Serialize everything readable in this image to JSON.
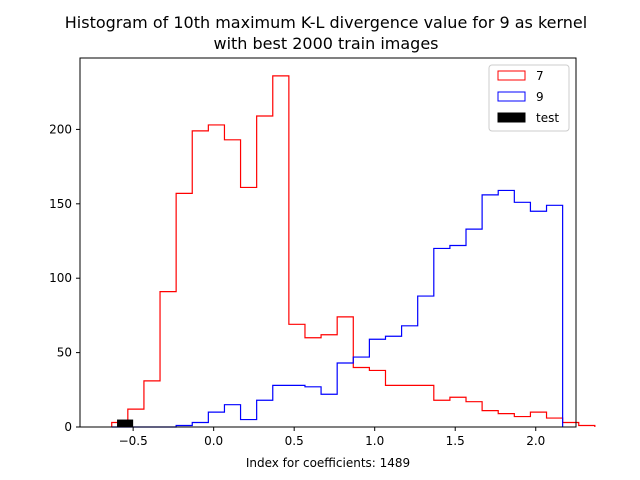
{
  "chart_data": {
    "type": "histogram",
    "title_line1": "Histogram of 10th maximum K-L divergence value for 9 as kernel",
    "title_line2": "with best 2000 train images",
    "xlabel": "Index for coefficients: 1489",
    "ylabel": "",
    "xlim": [
      -0.83,
      2.25
    ],
    "ylim": [
      0,
      248
    ],
    "xticks": [
      -0.5,
      0.0,
      0.5,
      1.0,
      1.5,
      2.0
    ],
    "xtick_labels": [
      "−0.5",
      "0.0",
      "0.5",
      "1.0",
      "1.5",
      "2.0"
    ],
    "yticks": [
      0,
      50,
      100,
      150,
      200
    ],
    "ytick_labels": [
      "0",
      "50",
      "100",
      "150",
      "200"
    ],
    "legend_position": "top-right",
    "series": [
      {
        "name": "7",
        "style": "step",
        "color": "#ff0000",
        "bin_start": -0.633,
        "bin_width": 0.1,
        "counts": [
          3,
          12,
          31,
          91,
          157,
          199,
          203,
          193,
          161,
          209,
          236,
          69,
          60,
          62,
          74,
          40,
          38,
          28,
          28,
          28,
          18,
          20,
          17,
          11,
          9,
          7,
          10,
          6,
          3,
          1
        ]
      },
      {
        "name": "9",
        "style": "step",
        "color": "#0000ff",
        "bin_start": -0.633,
        "bin_width": 0.1,
        "counts": [
          0,
          0,
          0,
          0,
          1,
          3,
          10,
          15,
          5,
          18,
          28,
          28,
          27,
          22,
          43,
          47,
          59,
          61,
          68,
          88,
          120,
          122,
          133,
          156,
          159,
          151,
          145,
          149
        ]
      },
      {
        "name": "test",
        "style": "bar",
        "color": "#000000",
        "bin_start": -0.6,
        "bin_width": 0.1,
        "counts": [
          5
        ]
      }
    ]
  }
}
